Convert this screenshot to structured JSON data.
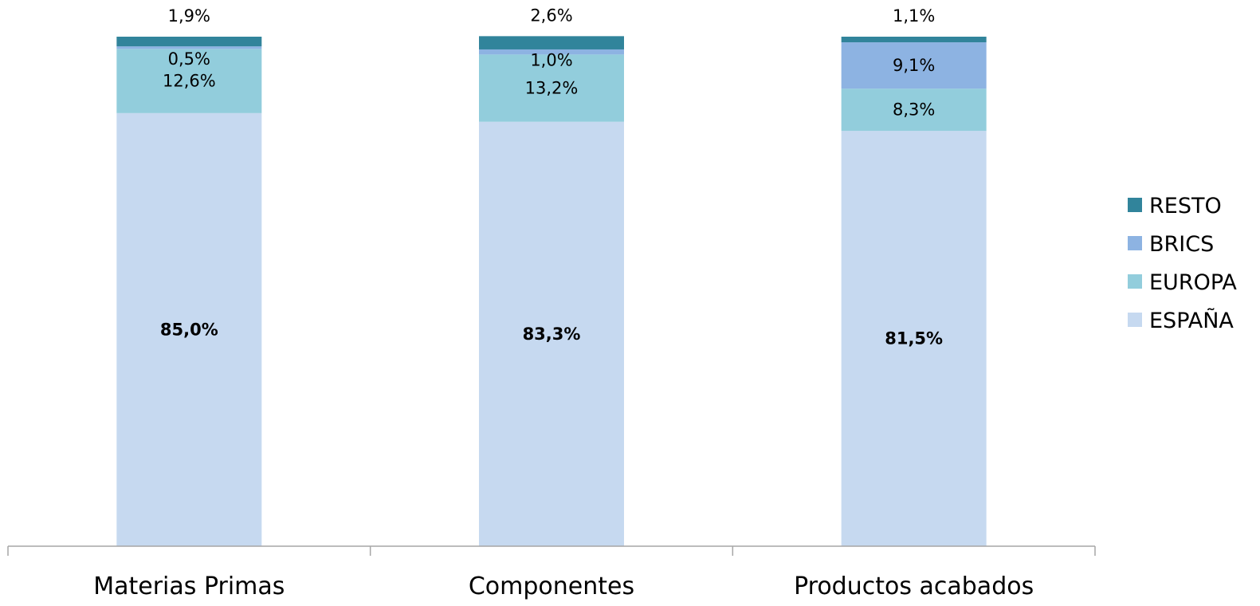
{
  "chart_data": {
    "type": "bar",
    "stacked": true,
    "percent_stacked": true,
    "categories": [
      "Materias Primas",
      "Componentes",
      "Productos acabados"
    ],
    "series": [
      {
        "name": "ESPAÑA",
        "color": "#c6d9f0",
        "values": [
          85.0,
          83.3,
          81.5
        ],
        "labels": [
          "85,0%",
          "83,3%",
          "81,5%"
        ],
        "bold": true
      },
      {
        "name": "EUROPA",
        "color": "#92cddc",
        "values": [
          12.6,
          13.2,
          8.3
        ],
        "labels": [
          "12,6%",
          "13,2%",
          "8,3%"
        ],
        "bold": false
      },
      {
        "name": "BRICS",
        "color": "#8db3e2",
        "values": [
          0.5,
          1.0,
          9.1
        ],
        "labels": [
          "0,5%",
          "1,0%",
          "9,1%"
        ],
        "bold": false
      },
      {
        "name": "RESTO",
        "color": "#31849b",
        "values": [
          1.9,
          2.6,
          1.1
        ],
        "labels": [
          "1,9%",
          "2,6%",
          "1,1%"
        ],
        "bold": false
      }
    ],
    "ylim": [
      0,
      100
    ],
    "grid": false,
    "legend_position": "right",
    "legend_order": [
      "RESTO",
      "BRICS",
      "EUROPA",
      "ESPAÑA"
    ]
  }
}
